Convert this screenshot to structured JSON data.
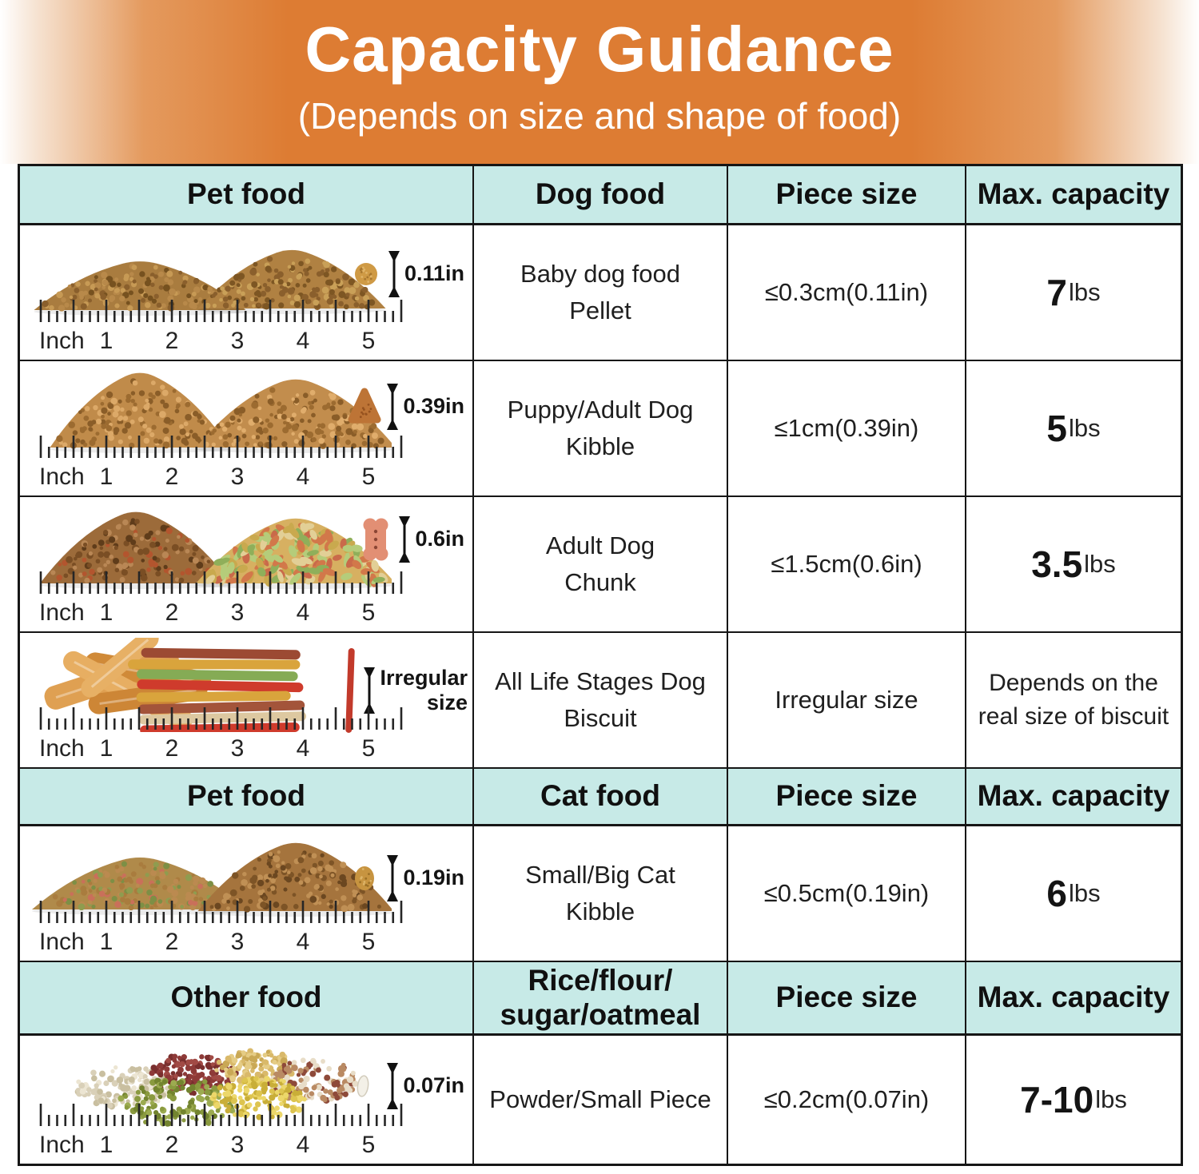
{
  "banner": {
    "title": "Capacity Guidance",
    "subtitle": "(Depends on size and shape of food)"
  },
  "colors": {
    "banner_orange": "#dd7c33",
    "header_teal": "#c7eae7",
    "border_black": "#161616",
    "title_white": "#ffffff"
  },
  "ruler": {
    "unit_label": "Inch",
    "numbers": [
      "1",
      "2",
      "3",
      "4",
      "5"
    ]
  },
  "sections": [
    {
      "header": {
        "pet": "Pet food",
        "type": [
          "Dog food"
        ],
        "piece": "Piece size",
        "capacity": "Max. capacity"
      },
      "rows": [
        {
          "name": [
            "Baby dog food",
            "Pellet"
          ],
          "piece_size": "≤0.3cm(0.11in)",
          "capacity_value": "7",
          "capacity_unit": "lbs",
          "sample_label": [
            "0.11in"
          ]
        },
        {
          "name": [
            "Puppy/Adult Dog",
            "Kibble"
          ],
          "piece_size": "≤1cm(0.39in)",
          "capacity_value": "5",
          "capacity_unit": "lbs",
          "sample_label": [
            "0.39in"
          ]
        },
        {
          "name": [
            "Adult Dog",
            "Chunk"
          ],
          "piece_size": "≤1.5cm(0.6in)",
          "capacity_value": "3.5",
          "capacity_unit": "lbs",
          "sample_label": [
            "0.6in"
          ]
        },
        {
          "name": [
            "All Life Stages Dog",
            "Biscuit"
          ],
          "piece_size": "Irregular size",
          "capacity_note": "Depends on the real size of biscuit",
          "sample_label": [
            "Irregular",
            "size"
          ]
        }
      ]
    },
    {
      "header": {
        "pet": "Pet food",
        "type": [
          "Cat food"
        ],
        "piece": "Piece size",
        "capacity": "Max. capacity"
      },
      "rows": [
        {
          "name": [
            "Small/Big Cat",
            "Kibble"
          ],
          "piece_size": "≤0.5cm(0.19in)",
          "capacity_value": "6",
          "capacity_unit": "lbs",
          "sample_label": [
            "0.19in"
          ]
        }
      ]
    },
    {
      "header": {
        "pet": "Other food",
        "type": [
          "Rice/flour/",
          "sugar/oatmeal"
        ],
        "piece": "Piece size",
        "capacity": "Max. capacity"
      },
      "rows": [
        {
          "name": [
            "Powder/Small Piece"
          ],
          "piece_size": "≤0.2cm(0.07in)",
          "capacity_value": "7-10",
          "capacity_unit": "lbs",
          "sample_label": [
            "0.07in"
          ]
        }
      ]
    }
  ]
}
